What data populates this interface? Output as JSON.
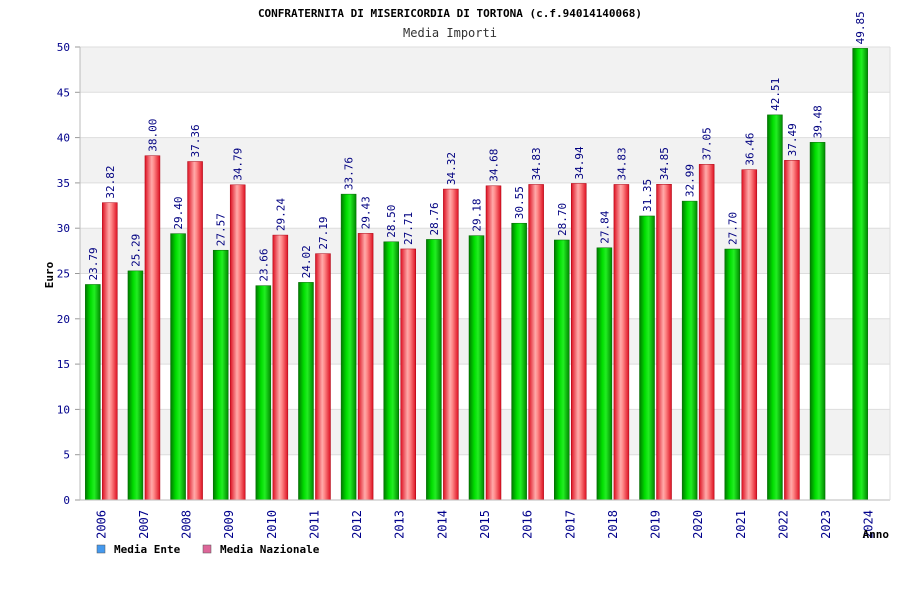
{
  "chart_data": {
    "type": "bar",
    "title": "CONFRATERNITA DI MISERICORDIA DI TORTONA (c.f.94014140068)",
    "subtitle": "Media Importi",
    "ylabel": "Euro",
    "xlabel": "Anno",
    "ylim": [
      0,
      50
    ],
    "yticks": [
      0,
      5,
      10,
      15,
      20,
      25,
      30,
      35,
      40,
      45,
      50
    ],
    "categories": [
      "2006",
      "2007",
      "2008",
      "2009",
      "2010",
      "2011",
      "2012",
      "2013",
      "2014",
      "2015",
      "2016",
      "2017",
      "2018",
      "2019",
      "2020",
      "2021",
      "2022",
      "2023",
      "2024"
    ],
    "series": [
      {
        "name": "Media Ente",
        "color": "#00cc00",
        "legend_color": "#4499ee",
        "values": [
          23.79,
          25.29,
          29.4,
          27.57,
          23.66,
          24.02,
          33.76,
          28.5,
          28.76,
          29.18,
          30.55,
          28.7,
          27.84,
          31.35,
          32.99,
          27.7,
          42.51,
          39.48,
          49.85
        ],
        "labels": [
          "23.79",
          "25.29",
          "29.40",
          "27.57",
          "23.66",
          "24.02",
          "33.76",
          "28.50",
          "28.76",
          "29.18",
          "30.55",
          "28.70",
          "27.84",
          "31.35",
          "32.99",
          "27.70",
          "42.51",
          "39.48",
          "49.85"
        ]
      },
      {
        "name": "Media Nazionale",
        "color": "#ee2233",
        "legend_color": "#dd6699",
        "values": [
          32.82,
          38.0,
          37.36,
          34.79,
          29.24,
          27.19,
          29.43,
          27.71,
          34.32,
          34.68,
          34.83,
          34.94,
          34.83,
          34.85,
          37.05,
          36.46,
          37.49,
          null,
          null
        ],
        "labels": [
          "32.82",
          "38.00",
          "37.36",
          "34.79",
          "29.24",
          "27.19",
          "29.43",
          "27.71",
          "34.32",
          "34.68",
          "34.83",
          "34.94",
          "34.83",
          "34.85",
          "37.05",
          "36.46",
          "37.49",
          null,
          null
        ]
      }
    ],
    "grid": true,
    "legend": "bottom-left"
  }
}
